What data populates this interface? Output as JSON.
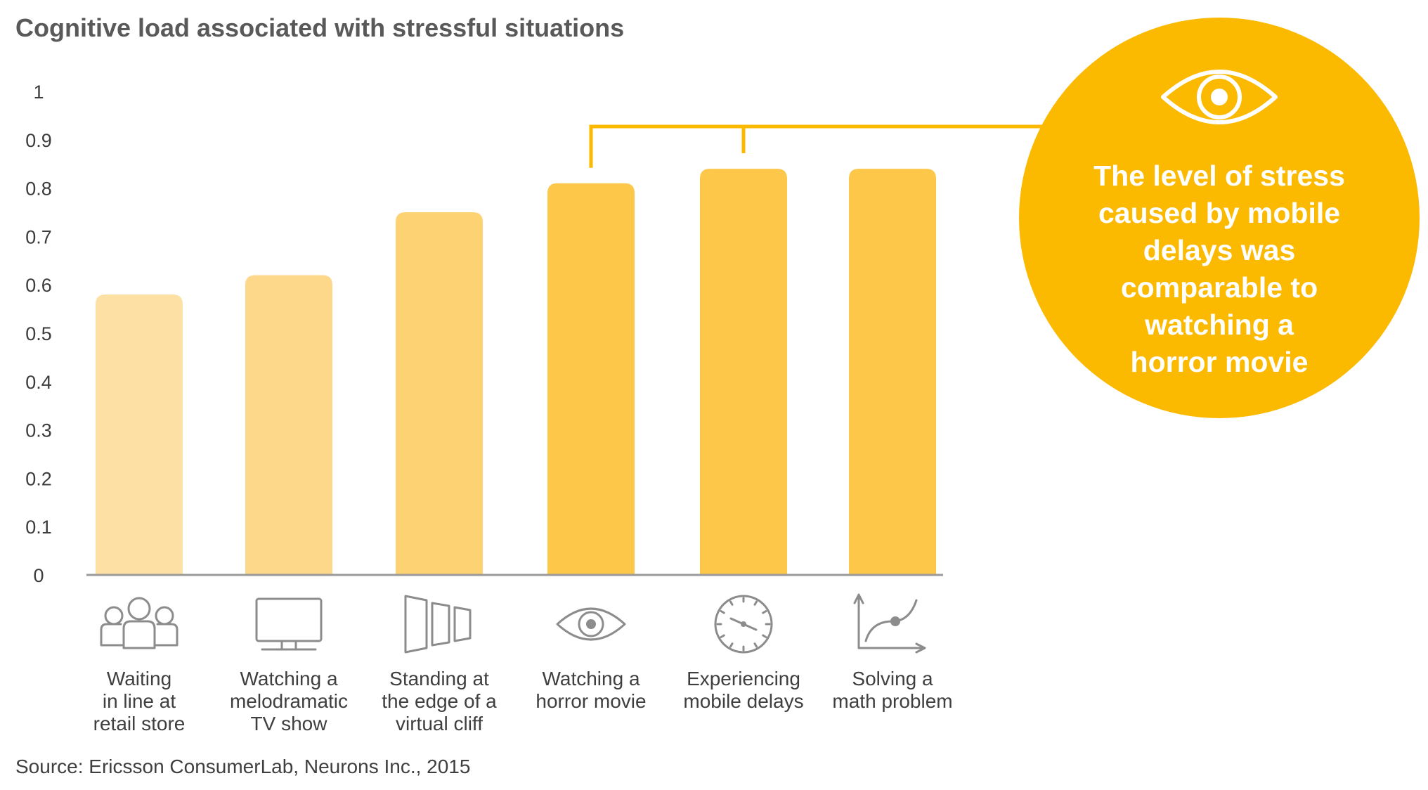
{
  "chart_data": {
    "type": "bar",
    "title": "Cognitive load associated with stressful situations",
    "categories": [
      [
        "Waiting",
        "in line at",
        "retail store"
      ],
      [
        "Watching a",
        "melodramatic",
        "TV show"
      ],
      [
        "Standing at",
        "the edge of a",
        "virtual cliff"
      ],
      [
        "Watching a",
        "horror movie"
      ],
      [
        "Experiencing",
        "mobile delays"
      ],
      [
        "Solving a",
        "math problem"
      ]
    ],
    "values": [
      0.58,
      0.62,
      0.75,
      0.81,
      0.84,
      0.84
    ],
    "icons": [
      "people-group-icon",
      "tv-monitor-icon",
      "virtual-cliff-panels-icon",
      "eye-icon",
      "clock-icon",
      "curve-graph-icon"
    ],
    "bar_colors": [
      "#fde0a3",
      "#fdd88a",
      "#fdd272",
      "#fdc84a",
      "#fdc84a",
      "#fdc84a"
    ],
    "ylim": [
      0,
      1
    ],
    "yticks": [
      "0",
      "0.1",
      "0.2",
      "0.3",
      "0.4",
      "0.5",
      "0.6",
      "0.7",
      "0.8",
      "0.9",
      "1"
    ],
    "xlabel": "",
    "ylabel": "",
    "grid": false,
    "callout": {
      "icon": "eye-icon",
      "lines": [
        "The level of stress",
        "caused by mobile",
        "delays was",
        "comparable to",
        "watching a",
        "horror movie"
      ],
      "brackets_categories": [
        3,
        4
      ]
    },
    "source": "Source: Ericsson ConsumerLab, Neurons Inc., 2015"
  },
  "colors": {
    "accent": "#fbb900",
    "axis": "#9a9a9a",
    "title_text": "#595959"
  }
}
